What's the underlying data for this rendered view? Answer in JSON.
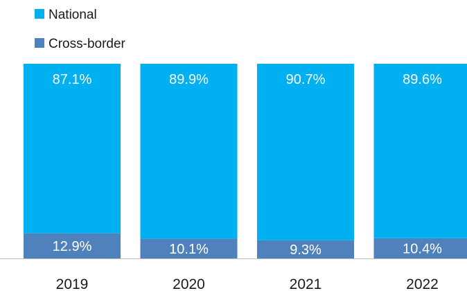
{
  "chart_data": {
    "type": "bar",
    "stacked": true,
    "categories": [
      "2019",
      "2020",
      "2021",
      "2022"
    ],
    "series": [
      {
        "name": "Cross-border",
        "color": "#4f81bd",
        "values": [
          12.9,
          10.1,
          9.3,
          10.4
        ],
        "labels": [
          "12.9%",
          "10.1%",
          "9.3%",
          "10.4%"
        ]
      },
      {
        "name": "National",
        "color": "#00b0f0",
        "values": [
          87.1,
          89.9,
          90.7,
          89.6
        ],
        "labels": [
          "87.1%",
          "89.9%",
          "90.7%",
          "89.6%"
        ]
      }
    ],
    "legend": {
      "position": "top-left",
      "order": [
        "National",
        "Cross-border"
      ]
    },
    "ylim": [
      0,
      100
    ],
    "unit": "%",
    "grid": false,
    "axis_line_color": "#bfbfbf"
  }
}
